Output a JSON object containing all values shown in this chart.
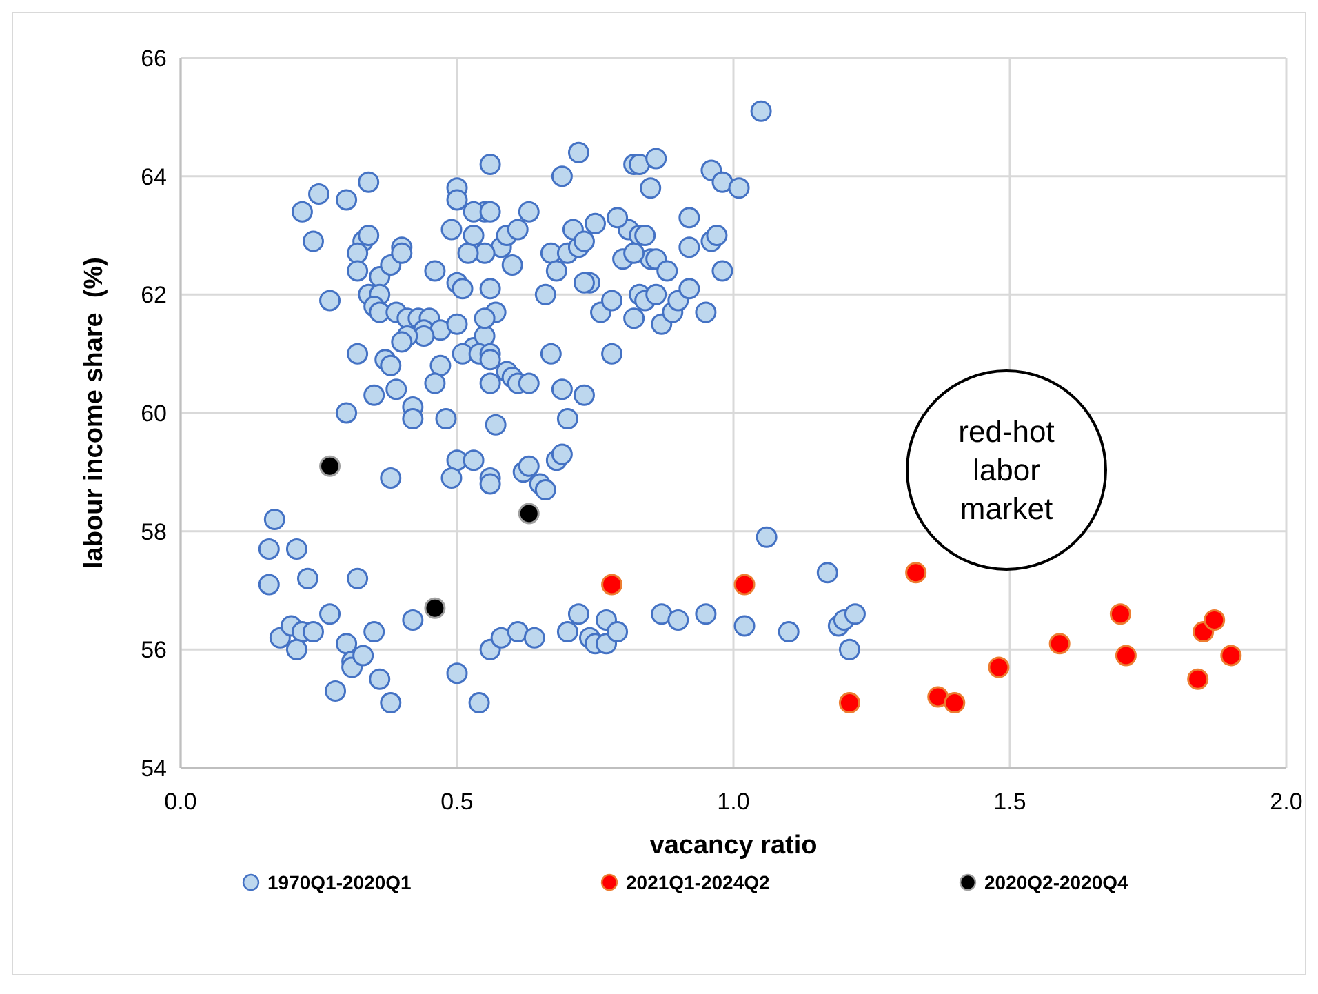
{
  "chart_data": {
    "type": "scatter",
    "xlabel": "vacancy ratio",
    "ylabel": "labour income share  (%)",
    "xlim": [
      0,
      2
    ],
    "ylim": [
      54,
      66
    ],
    "xticks": [
      {
        "value": 0,
        "label": "0.0"
      },
      {
        "value": 0.5,
        "label": "0.5"
      },
      {
        "value": 1,
        "label": "1.0"
      },
      {
        "value": 1.5,
        "label": "1.5"
      },
      {
        "value": 2,
        "label": "2.0"
      }
    ],
    "yticks": [
      54,
      56,
      58,
      60,
      62,
      64,
      66
    ],
    "grid": true,
    "legend": "bottom",
    "marker": "circle",
    "annotations": [
      "red-hot labor market"
    ],
    "series": [
      {
        "name": "1970Q1-2020Q1",
        "color": "#bdd7ee",
        "x": [
          0.22,
          0.25,
          0.24,
          0.3,
          0.34,
          0.27,
          0.33,
          0.34,
          0.32,
          0.32,
          0.36,
          0.38,
          0.4,
          0.4,
          0.34,
          0.36,
          0.35,
          0.36,
          0.39,
          0.41,
          0.43,
          0.45,
          0.44,
          0.47,
          0.44,
          0.41,
          0.4,
          0.5,
          0.37,
          0.35,
          0.38,
          0.39,
          0.42,
          0.42,
          0.3,
          0.32,
          0.38,
          0.48,
          0.47,
          0.46,
          0.5,
          0.53,
          0.49,
          0.56,
          0.56,
          0.62,
          0.63,
          0.65,
          0.66,
          0.68,
          0.69,
          0.57,
          0.53,
          0.51,
          0.55,
          0.54,
          0.56,
          0.59,
          0.6,
          0.61,
          0.63,
          0.56,
          0.57,
          0.55,
          0.56,
          0.6,
          0.58,
          0.55,
          0.52,
          0.53,
          0.55,
          0.53,
          0.5,
          0.5,
          0.49,
          0.46,
          0.5,
          0.51,
          0.56,
          0.56,
          0.59,
          0.61,
          0.63,
          0.72,
          0.67,
          0.7,
          0.72,
          0.71,
          0.73,
          0.75,
          0.69,
          0.74,
          0.73,
          0.66,
          0.68,
          0.76,
          0.78,
          0.67,
          0.69,
          0.7,
          0.73,
          0.8,
          0.81,
          0.79,
          0.82,
          0.83,
          0.86,
          0.85,
          0.83,
          0.84,
          0.85,
          0.86,
          0.82,
          0.83,
          0.84,
          0.86,
          0.82,
          0.87,
          0.89,
          0.9,
          0.88,
          0.92,
          0.92,
          0.92,
          0.96,
          0.97,
          0.95,
          0.96,
          0.98,
          0.98,
          1.01,
          1.05,
          0.78,
          0.56,
          0.16,
          0.16,
          0.17,
          0.21,
          0.23,
          0.18,
          0.2,
          0.22,
          0.24,
          0.21,
          0.27,
          0.28,
          0.3,
          0.31,
          0.31,
          0.33,
          0.32,
          0.35,
          0.36,
          0.38,
          0.42,
          0.5,
          0.54,
          0.56,
          0.58,
          0.61,
          0.64,
          0.7,
          0.72,
          0.74,
          0.75,
          0.77,
          0.77,
          0.79,
          0.87,
          0.9,
          0.95,
          1.02,
          1.06,
          1.1,
          1.17,
          1.19,
          1.2,
          1.21,
          1.22
        ],
        "values": [
          63.4,
          63.7,
          62.9,
          63.6,
          63.9,
          61.9,
          62.9,
          63.0,
          62.7,
          62.4,
          62.3,
          62.5,
          62.8,
          62.7,
          62.0,
          62.0,
          61.8,
          61.7,
          61.7,
          61.6,
          61.6,
          61.6,
          61.4,
          61.4,
          61.3,
          61.3,
          61.2,
          61.5,
          60.9,
          60.3,
          60.8,
          60.4,
          60.1,
          59.9,
          60.0,
          61.0,
          58.9,
          59.9,
          60.8,
          60.5,
          59.2,
          59.2,
          58.9,
          58.9,
          58.8,
          59.0,
          59.1,
          58.8,
          58.7,
          59.2,
          59.3,
          59.8,
          61.1,
          61.0,
          61.3,
          61.0,
          60.5,
          60.7,
          60.6,
          60.5,
          60.5,
          61.0,
          61.7,
          61.6,
          62.1,
          62.5,
          62.8,
          62.7,
          62.7,
          63.0,
          63.4,
          63.4,
          63.8,
          63.6,
          63.1,
          62.4,
          62.2,
          62.1,
          64.2,
          63.4,
          63.0,
          63.1,
          63.4,
          64.4,
          62.7,
          62.7,
          62.8,
          63.1,
          62.9,
          63.2,
          64.0,
          62.2,
          62.2,
          62.0,
          62.4,
          61.7,
          61.9,
          61.0,
          60.4,
          59.9,
          60.3,
          62.6,
          63.1,
          63.3,
          64.2,
          64.2,
          64.3,
          63.8,
          63.0,
          63.0,
          62.6,
          62.6,
          62.7,
          62.0,
          61.9,
          62.0,
          61.6,
          61.5,
          61.7,
          61.9,
          62.4,
          62.1,
          62.8,
          63.3,
          62.9,
          63.0,
          61.7,
          64.1,
          63.9,
          62.4,
          63.8,
          65.1,
          61.0,
          60.9,
          57.7,
          57.1,
          58.2,
          57.7,
          57.2,
          56.2,
          56.4,
          56.3,
          56.3,
          56.0,
          56.6,
          55.3,
          56.1,
          55.8,
          55.7,
          55.9,
          57.2,
          56.3,
          55.5,
          55.1,
          56.5,
          55.6,
          55.1,
          56.0,
          56.2,
          56.3,
          56.2,
          56.3,
          56.6,
          56.2,
          56.1,
          56.1,
          56.5,
          56.3,
          56.6,
          56.5,
          56.6,
          56.4,
          57.9,
          56.3,
          57.3,
          56.4,
          56.5,
          56.0,
          56.6
        ]
      },
      {
        "name": "2021Q1-2024Q2",
        "color": "#ff0000",
        "x": [
          0.78,
          1.02,
          1.21,
          1.33,
          1.37,
          1.4,
          1.48,
          1.59,
          1.7,
          1.71,
          1.84,
          1.85,
          1.87,
          1.9
        ],
        "values": [
          57.1,
          57.1,
          55.1,
          57.3,
          55.2,
          55.1,
          55.7,
          56.1,
          56.6,
          55.9,
          55.5,
          56.3,
          56.5,
          55.9
        ]
      },
      {
        "name": "2020Q2-2020Q4",
        "color": "#000000",
        "x": [
          0.27,
          0.63,
          0.46
        ],
        "values": [
          59.1,
          58.3,
          56.7
        ]
      }
    ]
  }
}
